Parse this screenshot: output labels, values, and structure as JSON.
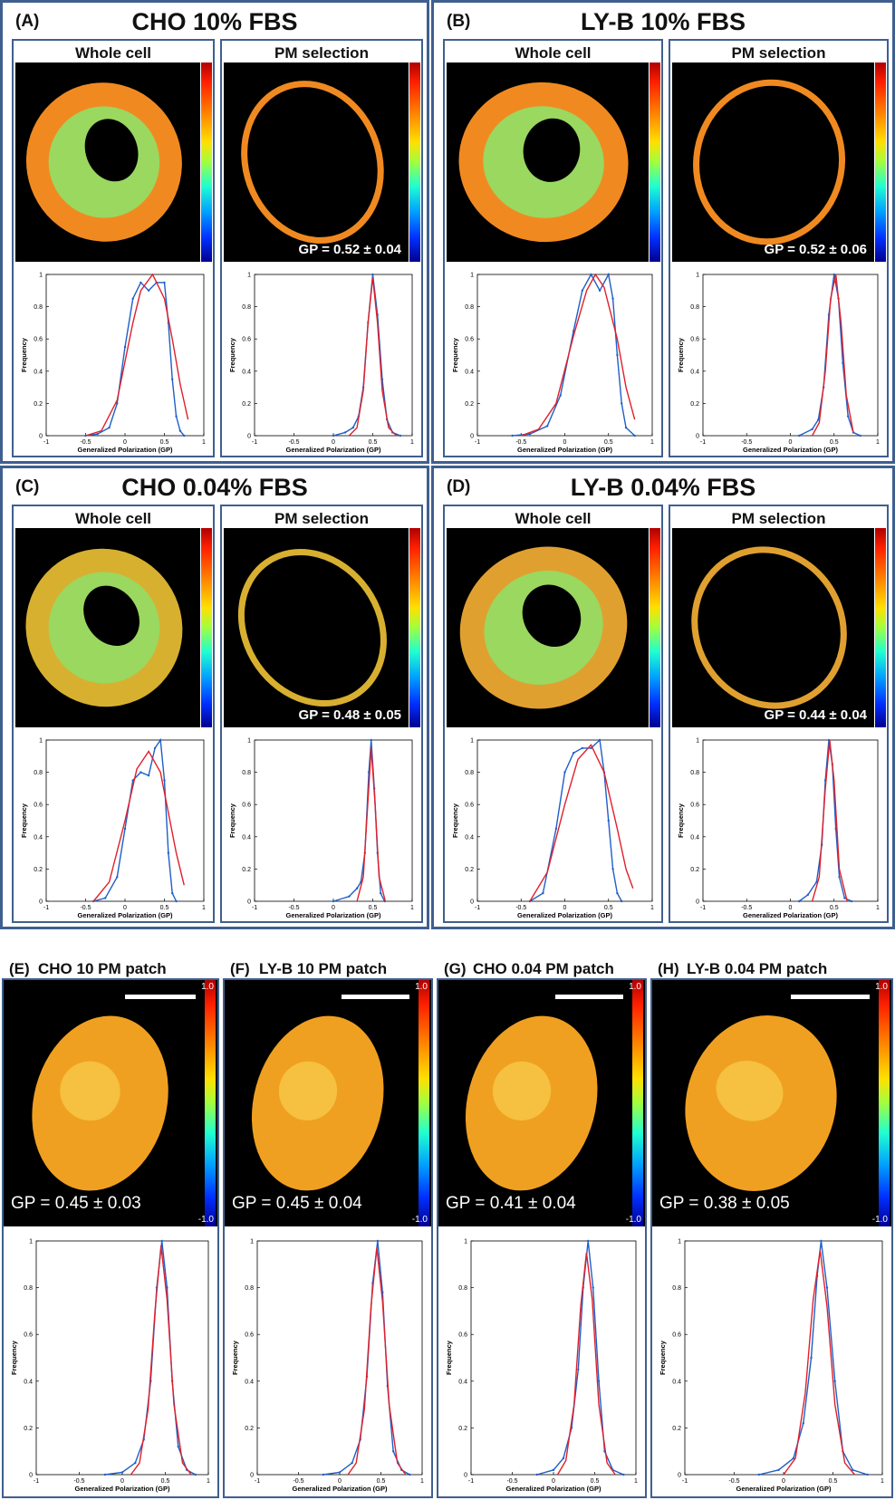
{
  "colors": {
    "frame": "#3f5f8f",
    "data": "#1f5fc8",
    "fit": "#e0202a"
  },
  "panels": [
    {
      "id": "A",
      "label": "(A)",
      "title": "CHO 10% FBS",
      "sub_left": "Whole cell",
      "sub_right": "PM selection",
      "gp": "GP = 0.52 ± 0.04",
      "cell_color": "#f08a20"
    },
    {
      "id": "B",
      "label": "(B)",
      "title": "LY-B 10% FBS",
      "sub_left": "Whole cell",
      "sub_right": "PM selection",
      "gp": "GP = 0.52 ± 0.06",
      "cell_color": "#f08a20"
    },
    {
      "id": "C",
      "label": "(C)",
      "title": "CHO 0.04% FBS",
      "sub_left": "Whole cell",
      "sub_right": "PM selection",
      "gp": "GP = 0.48 ± 0.05",
      "cell_color": "#d8b030"
    },
    {
      "id": "D",
      "label": "(D)",
      "title": "LY-B 0.04% FBS",
      "sub_left": "Whole cell",
      "sub_right": "PM selection",
      "gp": "GP = 0.44 ± 0.04",
      "cell_color": "#e0a030"
    }
  ],
  "patches": [
    {
      "id": "E",
      "label": "(E)",
      "title": "CHO 10 PM patch",
      "gp": "GP = 0.45 ± 0.03"
    },
    {
      "id": "F",
      "label": "(F)",
      "title": "LY-B 10 PM patch",
      "gp": "GP = 0.45 ± 0.04"
    },
    {
      "id": "G",
      "label": "(G)",
      "title": "CHO 0.04 PM patch",
      "gp": "GP = 0.41 ± 0.04"
    },
    {
      "id": "H",
      "label": "(H)",
      "title": "LY-B 0.04 PM patch",
      "gp": "GP = 0.38 ± 0.05"
    }
  ],
  "colorbar": {
    "max": "1.0",
    "min": "-1.0"
  },
  "chart_data": [
    {
      "id": "A-whole",
      "type": "line",
      "xlabel": "Generalized Polarization (GP)",
      "ylabel": "Frequency",
      "xlim": [
        -1,
        1
      ],
      "ylim": [
        0,
        1
      ],
      "xticks": [
        "-1",
        "-0.5",
        "0",
        "0.5",
        "1"
      ],
      "yticks": [
        "0",
        "0.2",
        "0.4",
        "0.6",
        "0.8",
        "1"
      ],
      "series": [
        {
          "role": "data",
          "x": [
            -0.5,
            -0.35,
            -0.2,
            -0.1,
            0.0,
            0.1,
            0.2,
            0.3,
            0.4,
            0.5,
            0.55,
            0.6,
            0.65,
            0.7,
            0.75
          ],
          "y": [
            0,
            0.01,
            0.05,
            0.2,
            0.55,
            0.85,
            0.95,
            0.9,
            0.95,
            0.95,
            0.7,
            0.35,
            0.12,
            0.03,
            0
          ]
        },
        {
          "role": "fit",
          "x": [
            -0.5,
            -0.3,
            -0.1,
            0.1,
            0.2,
            0.35,
            0.5,
            0.6,
            0.7,
            0.8
          ],
          "y": [
            0,
            0.03,
            0.22,
            0.7,
            0.9,
            1.0,
            0.85,
            0.6,
            0.32,
            0.1
          ]
        }
      ]
    },
    {
      "id": "A-pm",
      "type": "line",
      "xlabel": "Generalized Polarization (GP)",
      "ylabel": "Frequency",
      "xlim": [
        -1,
        1
      ],
      "ylim": [
        0,
        1
      ],
      "xticks": [
        "-1",
        "-0.5",
        "0",
        "0.5",
        "1"
      ],
      "yticks": [
        "0",
        "0.2",
        "0.4",
        "0.6",
        "0.8",
        "1"
      ],
      "series": [
        {
          "role": "data",
          "x": [
            0.0,
            0.15,
            0.25,
            0.32,
            0.38,
            0.44,
            0.5,
            0.56,
            0.62,
            0.68,
            0.75,
            0.85
          ],
          "y": [
            0,
            0.02,
            0.05,
            0.12,
            0.3,
            0.7,
            1.0,
            0.75,
            0.35,
            0.1,
            0.02,
            0
          ]
        },
        {
          "role": "fit",
          "x": [
            0.2,
            0.3,
            0.38,
            0.44,
            0.5,
            0.56,
            0.62,
            0.7,
            0.8
          ],
          "y": [
            0,
            0.05,
            0.28,
            0.7,
            0.98,
            0.7,
            0.28,
            0.05,
            0
          ]
        }
      ]
    },
    {
      "id": "B-whole",
      "type": "line",
      "xlabel": "Generalized Polarization (GP)",
      "ylabel": "Frequency",
      "xlim": [
        -1,
        1
      ],
      "ylim": [
        0,
        1
      ],
      "xticks": [
        "-1",
        "-0.5",
        "0",
        "0.5",
        "1"
      ],
      "yticks": [
        "0",
        "0.2",
        "0.4",
        "0.6",
        "0.8",
        "1"
      ],
      "series": [
        {
          "role": "data",
          "x": [
            -0.6,
            -0.4,
            -0.2,
            -0.05,
            0.1,
            0.2,
            0.3,
            0.4,
            0.5,
            0.55,
            0.6,
            0.65,
            0.7,
            0.8
          ],
          "y": [
            0,
            0.01,
            0.06,
            0.25,
            0.65,
            0.9,
            1.0,
            0.9,
            1.0,
            0.85,
            0.5,
            0.2,
            0.05,
            0
          ]
        },
        {
          "role": "fit",
          "x": [
            -0.5,
            -0.3,
            -0.1,
            0.1,
            0.25,
            0.35,
            0.45,
            0.6,
            0.7,
            0.8
          ],
          "y": [
            0,
            0.04,
            0.2,
            0.62,
            0.9,
            1.0,
            0.92,
            0.6,
            0.3,
            0.1
          ]
        }
      ]
    },
    {
      "id": "B-pm",
      "type": "line",
      "xlabel": "Generalized Polarization (GP)",
      "ylabel": "Frequency",
      "xlim": [
        -1,
        1
      ],
      "ylim": [
        0,
        1
      ],
      "xticks": [
        "-1",
        "-0.5",
        "0",
        "0.5",
        "1"
      ],
      "yticks": [
        "0",
        "0.2",
        "0.4",
        "0.6",
        "0.8",
        "1"
      ],
      "series": [
        {
          "role": "data",
          "x": [
            0.1,
            0.25,
            0.32,
            0.38,
            0.44,
            0.5,
            0.55,
            0.6,
            0.66,
            0.72,
            0.8
          ],
          "y": [
            0,
            0.04,
            0.1,
            0.3,
            0.75,
            1.0,
            0.85,
            0.45,
            0.12,
            0.02,
            0
          ]
        },
        {
          "role": "fit",
          "x": [
            0.25,
            0.33,
            0.4,
            0.46,
            0.52,
            0.58,
            0.64,
            0.72
          ],
          "y": [
            0,
            0.08,
            0.4,
            0.85,
            1.0,
            0.7,
            0.25,
            0.02
          ]
        }
      ]
    },
    {
      "id": "C-whole",
      "type": "line",
      "xlabel": "Generalized Polarization (GP)",
      "ylabel": "Frequency",
      "xlim": [
        -1,
        1
      ],
      "ylim": [
        0,
        1
      ],
      "xticks": [
        "-1",
        "-0.5",
        "0",
        "0.5",
        "1"
      ],
      "yticks": [
        "0",
        "0.2",
        "0.4",
        "0.6",
        "0.8",
        "1"
      ],
      "series": [
        {
          "role": "data",
          "x": [
            -0.4,
            -0.25,
            -0.1,
            0.0,
            0.1,
            0.2,
            0.3,
            0.38,
            0.45,
            0.5,
            0.55,
            0.6,
            0.65
          ],
          "y": [
            0,
            0.02,
            0.15,
            0.45,
            0.75,
            0.8,
            0.78,
            0.95,
            1.0,
            0.75,
            0.3,
            0.05,
            0
          ]
        },
        {
          "role": "fit",
          "x": [
            -0.4,
            -0.2,
            0.0,
            0.15,
            0.3,
            0.45,
            0.55,
            0.65,
            0.75
          ],
          "y": [
            0,
            0.12,
            0.5,
            0.82,
            0.93,
            0.8,
            0.55,
            0.3,
            0.1
          ]
        }
      ]
    },
    {
      "id": "C-pm",
      "type": "line",
      "xlabel": "Generalized Polarization (GP)",
      "ylabel": "Frequency",
      "xlim": [
        -1,
        1
      ],
      "ylim": [
        0,
        1
      ],
      "xticks": [
        "-1",
        "-0.5",
        "0",
        "0.5",
        "1"
      ],
      "yticks": [
        "0",
        "0.2",
        "0.4",
        "0.6",
        "0.8",
        "1"
      ],
      "series": [
        {
          "role": "data",
          "x": [
            0.0,
            0.2,
            0.3,
            0.35,
            0.4,
            0.45,
            0.48,
            0.52,
            0.56,
            0.6,
            0.65
          ],
          "y": [
            0,
            0.03,
            0.08,
            0.12,
            0.3,
            0.8,
            1.0,
            0.7,
            0.3,
            0.05,
            0
          ]
        },
        {
          "role": "fit",
          "x": [
            0.3,
            0.38,
            0.43,
            0.48,
            0.53,
            0.58,
            0.66
          ],
          "y": [
            0,
            0.15,
            0.55,
            0.95,
            0.6,
            0.15,
            0
          ]
        }
      ]
    },
    {
      "id": "D-whole",
      "type": "line",
      "xlabel": "Generalized Polarization (GP)",
      "ylabel": "Frequency",
      "xlim": [
        -1,
        1
      ],
      "ylim": [
        0,
        1
      ],
      "xticks": [
        "-1",
        "-0.5",
        "0",
        "0.5",
        "1"
      ],
      "yticks": [
        "0",
        "0.2",
        "0.4",
        "0.6",
        "0.8",
        "1"
      ],
      "series": [
        {
          "role": "data",
          "x": [
            -0.4,
            -0.25,
            -0.1,
            0.0,
            0.1,
            0.2,
            0.3,
            0.4,
            0.45,
            0.5,
            0.55,
            0.6,
            0.65
          ],
          "y": [
            0,
            0.05,
            0.45,
            0.8,
            0.92,
            0.95,
            0.95,
            1.0,
            0.8,
            0.5,
            0.2,
            0.05,
            0
          ]
        },
        {
          "role": "fit",
          "x": [
            -0.4,
            -0.2,
            0.0,
            0.15,
            0.3,
            0.45,
            0.6,
            0.7,
            0.78
          ],
          "y": [
            0,
            0.18,
            0.6,
            0.88,
            0.97,
            0.8,
            0.45,
            0.2,
            0.08
          ]
        }
      ]
    },
    {
      "id": "D-pm",
      "type": "line",
      "xlabel": "Generalized Polarization (GP)",
      "ylabel": "Frequency",
      "xlim": [
        -1,
        1
      ],
      "ylim": [
        0,
        1
      ],
      "xticks": [
        "-1",
        "-0.5",
        "0",
        "0.5",
        "1"
      ],
      "yticks": [
        "0",
        "0.2",
        "0.4",
        "0.6",
        "0.8",
        "1"
      ],
      "series": [
        {
          "role": "data",
          "x": [
            0.1,
            0.2,
            0.3,
            0.36,
            0.4,
            0.44,
            0.48,
            0.52,
            0.56,
            0.62,
            0.7
          ],
          "y": [
            0,
            0.04,
            0.12,
            0.35,
            0.75,
            1.0,
            0.85,
            0.45,
            0.15,
            0.02,
            0
          ]
        },
        {
          "role": "fit",
          "x": [
            0.25,
            0.33,
            0.4,
            0.45,
            0.5,
            0.56,
            0.65
          ],
          "y": [
            0,
            0.15,
            0.7,
            1.0,
            0.75,
            0.2,
            0
          ]
        }
      ]
    },
    {
      "id": "E",
      "type": "line",
      "xlabel": "Generalized Polarization (GP)",
      "ylabel": "Frequency",
      "xlim": [
        -1,
        1
      ],
      "ylim": [
        0,
        1
      ],
      "xticks": [
        "-1",
        "-0.5",
        "0",
        "0.5",
        "1"
      ],
      "yticks": [
        "0",
        "0.2",
        "0.4",
        "0.6",
        "0.8",
        "1"
      ],
      "series": [
        {
          "role": "data",
          "x": [
            -0.2,
            0.0,
            0.15,
            0.25,
            0.33,
            0.4,
            0.46,
            0.52,
            0.58,
            0.65,
            0.75,
            0.85
          ],
          "y": [
            0,
            0.01,
            0.05,
            0.15,
            0.4,
            0.8,
            1.0,
            0.8,
            0.4,
            0.12,
            0.02,
            0
          ]
        },
        {
          "role": "fit",
          "x": [
            0.1,
            0.2,
            0.3,
            0.38,
            0.45,
            0.52,
            0.6,
            0.7,
            0.8
          ],
          "y": [
            0,
            0.05,
            0.28,
            0.7,
            0.98,
            0.75,
            0.3,
            0.05,
            0
          ]
        }
      ]
    },
    {
      "id": "F",
      "type": "line",
      "xlabel": "Generalized Polarization (GP)",
      "ylabel": "Frequency",
      "xlim": [
        -1,
        1
      ],
      "ylim": [
        0,
        1
      ],
      "xticks": [
        "-1",
        "-0.5",
        "0",
        "0.5",
        "1"
      ],
      "yticks": [
        "0",
        "0.2",
        "0.4",
        "0.6",
        "0.8",
        "1"
      ],
      "series": [
        {
          "role": "data",
          "x": [
            -0.2,
            0.0,
            0.15,
            0.25,
            0.33,
            0.4,
            0.46,
            0.52,
            0.58,
            0.65,
            0.75,
            0.85
          ],
          "y": [
            0,
            0.01,
            0.05,
            0.15,
            0.42,
            0.82,
            1.0,
            0.78,
            0.38,
            0.1,
            0.02,
            0
          ]
        },
        {
          "role": "fit",
          "x": [
            0.1,
            0.2,
            0.3,
            0.38,
            0.45,
            0.52,
            0.6,
            0.7,
            0.8
          ],
          "y": [
            0,
            0.05,
            0.28,
            0.72,
            0.97,
            0.74,
            0.3,
            0.05,
            0
          ]
        }
      ]
    },
    {
      "id": "G",
      "type": "line",
      "xlabel": "Generalized Polarization (GP)",
      "ylabel": "Frequency",
      "xlim": [
        -1,
        1
      ],
      "ylim": [
        0,
        1
      ],
      "xticks": [
        "-1",
        "-0.5",
        "0",
        "0.5",
        "1"
      ],
      "yticks": [
        "0",
        "0.2",
        "0.4",
        "0.6",
        "0.8",
        "1"
      ],
      "series": [
        {
          "role": "data",
          "x": [
            -0.2,
            0.0,
            0.12,
            0.22,
            0.3,
            0.36,
            0.42,
            0.48,
            0.55,
            0.62,
            0.72,
            0.85
          ],
          "y": [
            0,
            0.02,
            0.07,
            0.2,
            0.45,
            0.8,
            1.0,
            0.8,
            0.4,
            0.1,
            0.02,
            0
          ]
        },
        {
          "role": "fit",
          "x": [
            0.05,
            0.15,
            0.25,
            0.33,
            0.4,
            0.47,
            0.55,
            0.65,
            0.75
          ],
          "y": [
            0,
            0.06,
            0.3,
            0.72,
            0.95,
            0.75,
            0.3,
            0.05,
            0
          ]
        }
      ]
    },
    {
      "id": "H",
      "type": "line",
      "xlabel": "Generalized Polarization (GP)",
      "ylabel": "Frequency",
      "xlim": [
        -1,
        1
      ],
      "ylim": [
        0,
        1
      ],
      "xticks": [
        "-1",
        "-0.5",
        "0",
        "0.5",
        "1"
      ],
      "yticks": [
        "0",
        "0.2",
        "0.4",
        "0.6",
        "0.8",
        "1"
      ],
      "series": [
        {
          "role": "data",
          "x": [
            -0.25,
            -0.05,
            0.1,
            0.2,
            0.28,
            0.34,
            0.38,
            0.44,
            0.52,
            0.6,
            0.7,
            0.85
          ],
          "y": [
            0,
            0.02,
            0.07,
            0.22,
            0.5,
            0.85,
            1.0,
            0.8,
            0.4,
            0.1,
            0.02,
            0
          ]
        },
        {
          "role": "fit",
          "x": [
            0.0,
            0.12,
            0.22,
            0.3,
            0.37,
            0.44,
            0.52,
            0.62,
            0.72
          ],
          "y": [
            0,
            0.07,
            0.35,
            0.75,
            0.96,
            0.72,
            0.3,
            0.05,
            0
          ]
        }
      ]
    }
  ]
}
